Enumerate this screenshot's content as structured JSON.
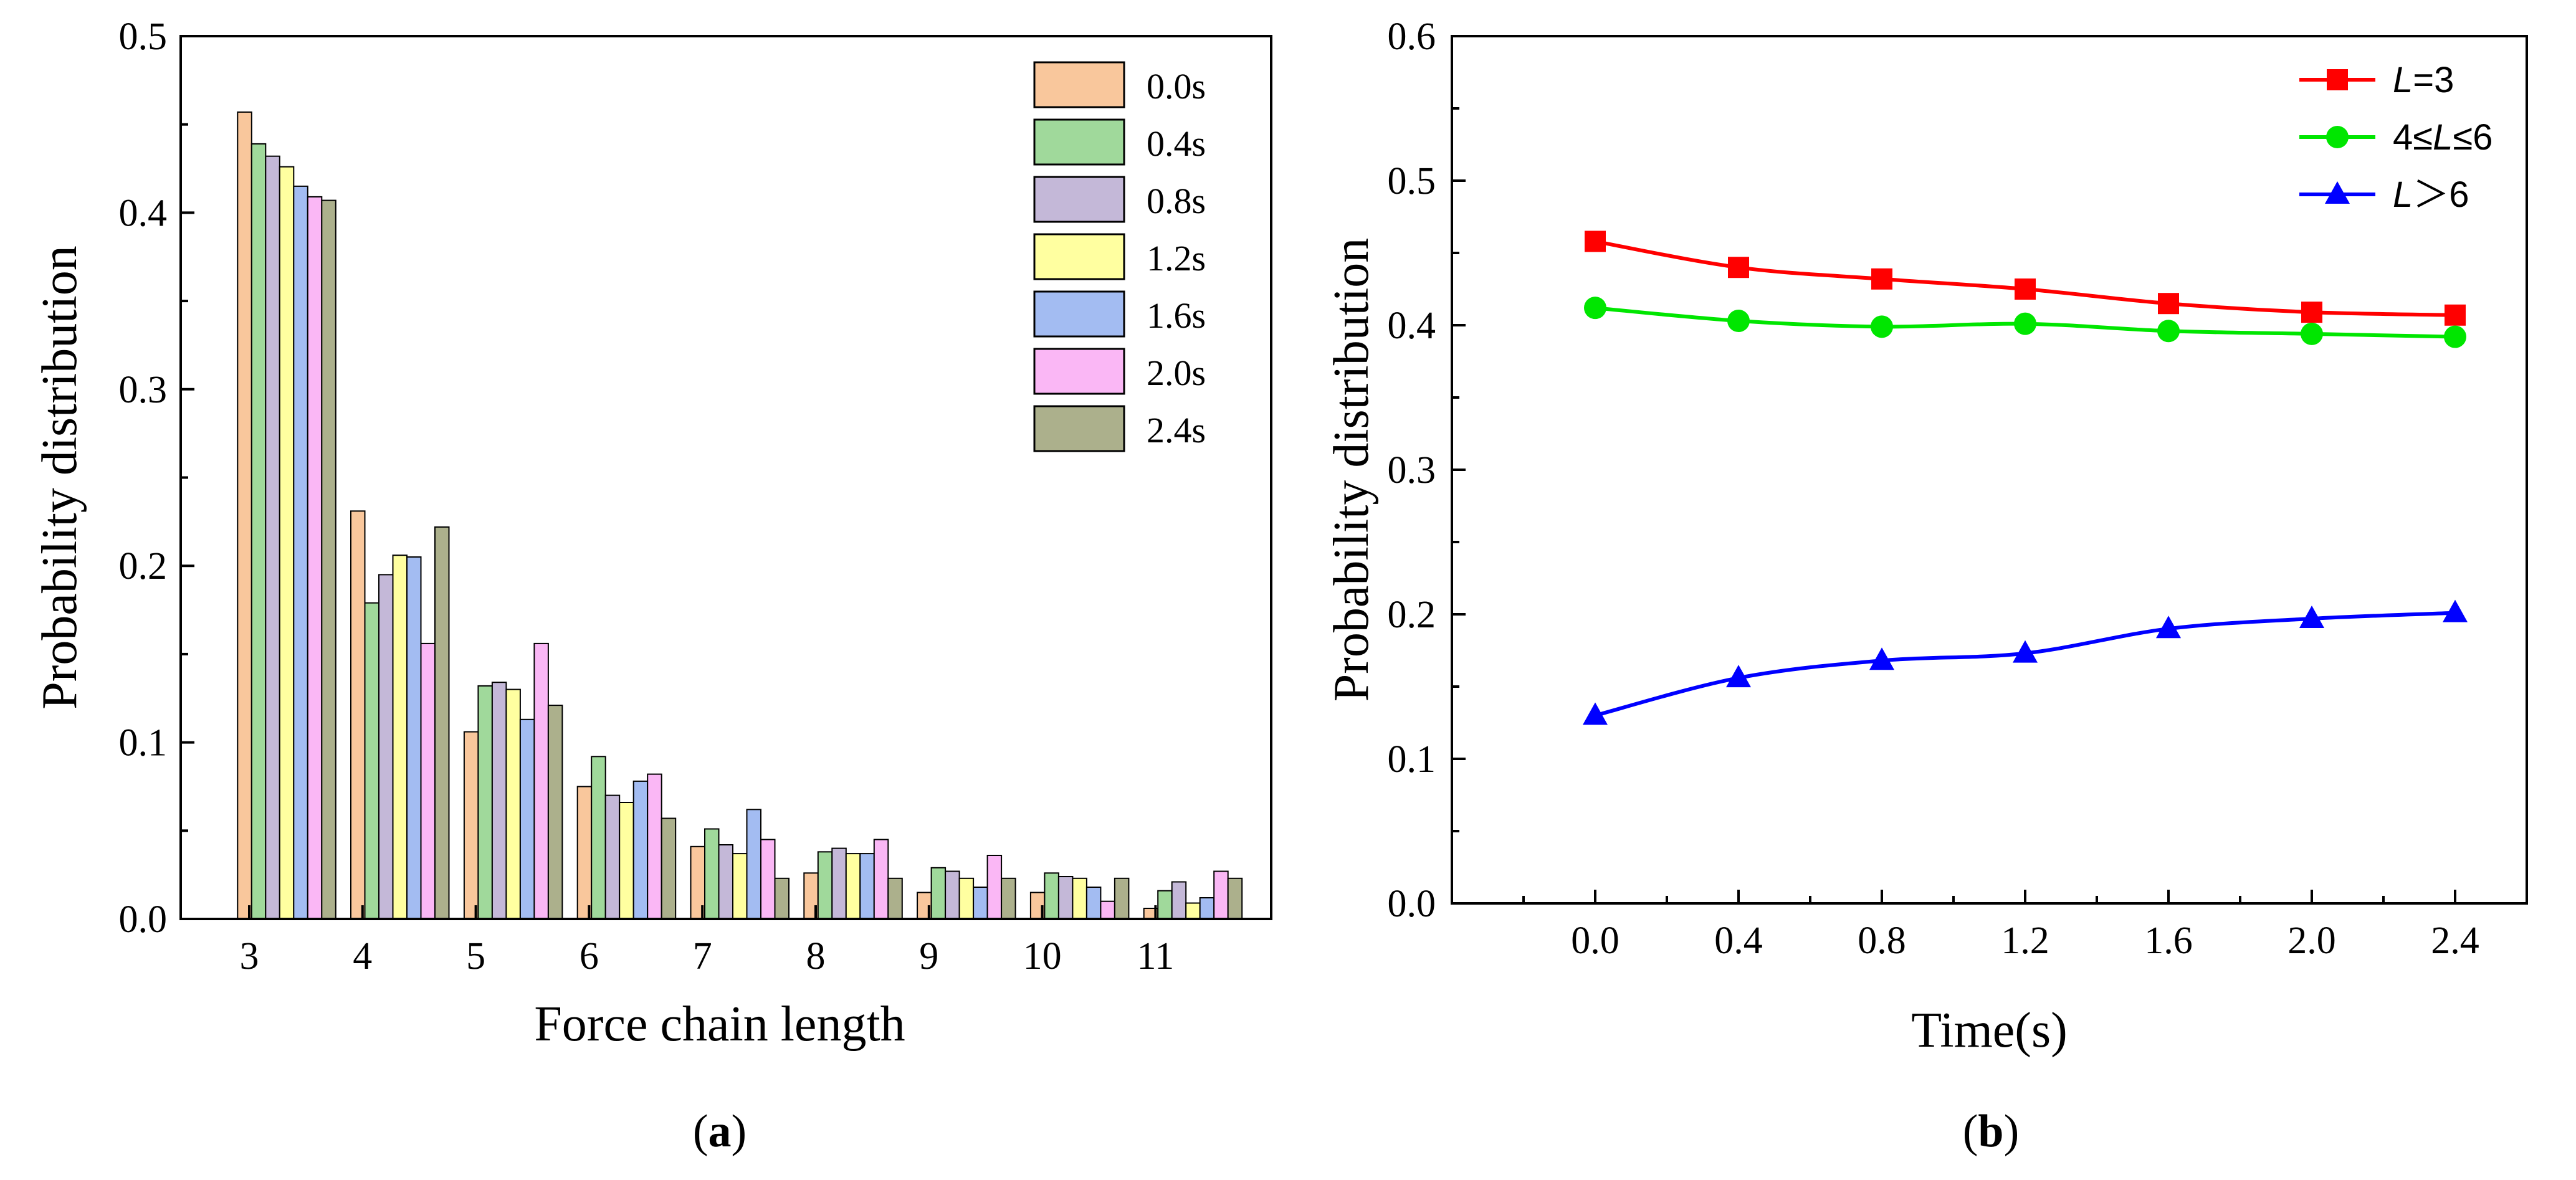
{
  "chart_data": [
    {
      "type": "bar",
      "panel_label": {
        "open": "(",
        "letter": "a",
        "close": ")"
      },
      "xlabel": "Force chain length",
      "ylabel": "Probability distribution",
      "categories": [
        "3",
        "4",
        "5",
        "6",
        "7",
        "8",
        "9",
        "10",
        "11"
      ],
      "ylim": [
        0,
        0.5
      ],
      "yticks": [
        "0.0",
        "0.1",
        "0.2",
        "0.3",
        "0.4",
        "0.5"
      ],
      "legend_position": "top-right",
      "series": [
        {
          "name": "0.0s",
          "color": "#f9c79c",
          "values": [
            0.457,
            0.231,
            0.106,
            0.075,
            0.041,
            0.026,
            0.015,
            0.015,
            0.006
          ]
        },
        {
          "name": "0.4s",
          "color": "#a0d99b",
          "values": [
            0.439,
            0.179,
            0.132,
            0.092,
            0.051,
            0.038,
            0.029,
            0.026,
            0.016
          ]
        },
        {
          "name": "0.8s",
          "color": "#c4b8d8",
          "values": [
            0.432,
            0.195,
            0.134,
            0.07,
            0.042,
            0.04,
            0.027,
            0.024,
            0.021
          ]
        },
        {
          "name": "1.2s",
          "color": "#ffffa0",
          "values": [
            0.426,
            0.206,
            0.13,
            0.066,
            0.037,
            0.037,
            0.023,
            0.023,
            0.009
          ]
        },
        {
          "name": "1.6s",
          "color": "#a3bcf2",
          "values": [
            0.415,
            0.205,
            0.113,
            0.078,
            0.062,
            0.037,
            0.018,
            0.018,
            0.012
          ]
        },
        {
          "name": "2.0s",
          "color": "#fab7f5",
          "values": [
            0.409,
            0.156,
            0.156,
            0.082,
            0.045,
            0.045,
            0.036,
            0.01,
            0.027
          ]
        },
        {
          "name": "2.4s",
          "color": "#acb08c",
          "values": [
            0.407,
            0.222,
            0.121,
            0.057,
            0.023,
            0.023,
            0.023,
            0.023,
            0.023
          ]
        }
      ]
    },
    {
      "type": "line",
      "panel_label": {
        "open": "(",
        "letter": "b",
        "close": ")"
      },
      "xlabel": "Time(s)",
      "ylabel": "Probability distribution",
      "x": [
        0.0,
        0.4,
        0.8,
        1.2,
        1.6,
        2.0,
        2.4
      ],
      "xticks": [
        "0.0",
        "0.4",
        "0.8",
        "1.2",
        "1.6",
        "2.0",
        "2.4"
      ],
      "xlim": [
        -0.4,
        2.6
      ],
      "ylim": [
        0,
        0.6
      ],
      "yticks": [
        "0.0",
        "0.1",
        "0.2",
        "0.3",
        "0.4",
        "0.5",
        "0.6"
      ],
      "legend_position": "top-right",
      "series": [
        {
          "name_parts": [
            "",
            "L",
            "=3"
          ],
          "color": "#ff0000",
          "marker": "square",
          "values": [
            0.458,
            0.44,
            0.432,
            0.425,
            0.415,
            0.409,
            0.407
          ]
        },
        {
          "name_parts": [
            "4≤",
            "L",
            "≤6"
          ],
          "color": "#00e600",
          "marker": "circle",
          "values": [
            0.412,
            0.403,
            0.399,
            0.401,
            0.396,
            0.394,
            0.392
          ]
        },
        {
          "name_parts": [
            "",
            "L",
            "＞6"
          ],
          "color": "#0000ff",
          "marker": "triangle",
          "values": [
            0.13,
            0.156,
            0.168,
            0.173,
            0.19,
            0.197,
            0.201
          ]
        }
      ]
    }
  ]
}
